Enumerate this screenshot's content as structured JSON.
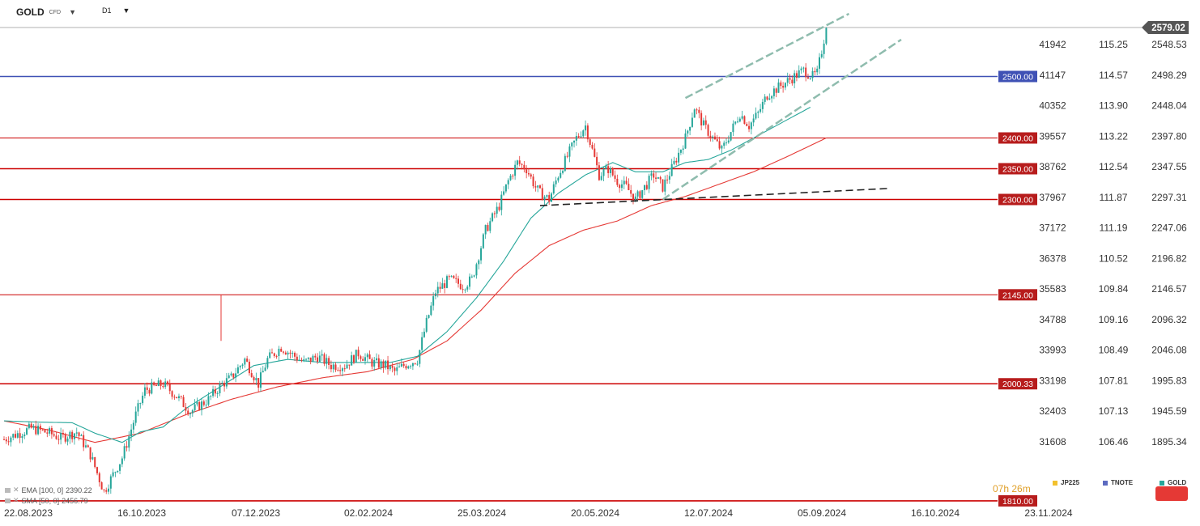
{
  "header": {
    "symbol": "GOLD",
    "symbol_suffix": "CFD",
    "timeframe": "D1"
  },
  "indicators": [
    {
      "name": "EMA [100, 0]",
      "value": "2390.22",
      "color": "#e53935"
    },
    {
      "name": "SMA [50, 0]",
      "value": "2456.79",
      "color": "#26a69a"
    }
  ],
  "countdown": "07h 26m",
  "legend": [
    {
      "name": "JP225",
      "color": "#f2c12e"
    },
    {
      "name": "TNOTE",
      "color": "#5c6bc0"
    },
    {
      "name": "GOLD",
      "color": "#26a69a"
    }
  ],
  "colors": {
    "up": "#26a69a",
    "down": "#e53935",
    "blue_level": "#3f51b5",
    "red_level": "#cc0000",
    "channel": "#8fbcae",
    "support": "#222222"
  },
  "chart_data": {
    "type": "candlestick",
    "title": "",
    "x_ticks": [
      "22.08.2023",
      "16.10.2023",
      "07.12.2023",
      "02.02.2024",
      "25.03.2024",
      "20.05.2024",
      "12.07.2024",
      "05.09.2024",
      "16.10.2024",
      "23.11.2024"
    ],
    "y_range": [
      1790,
      2605
    ],
    "axes": [
      {
        "series": "JP225",
        "ticks": [
          41942,
          41147,
          40352,
          39557,
          38762,
          37967,
          37172,
          36378,
          35583,
          34788,
          33993,
          33198,
          32403,
          31608
        ]
      },
      {
        "series": "TNOTE",
        "ticks": [
          "115.25",
          "114.57",
          "113.90",
          "113.22",
          "112.54",
          "111.87",
          "111.19",
          "110.52",
          "109.84",
          "109.16",
          "108.49",
          "107.81",
          "107.13",
          "106.46"
        ]
      },
      {
        "series": "GOLD",
        "ticks": [
          "2548.53",
          "2498.29",
          "2448.04",
          "2397.80",
          "2347.55",
          "2297.31",
          "2247.06",
          "2196.82",
          "2146.57",
          "2096.32",
          "2046.08",
          "1995.83",
          "1945.59",
          "1895.34"
        ]
      }
    ],
    "last_price": "2579.02",
    "horizontal_levels": [
      {
        "label": "2500.00",
        "value": 2500.0,
        "color": "blue"
      },
      {
        "label": "2400.00",
        "value": 2400.0,
        "color": "red"
      },
      {
        "label": "2350.00",
        "value": 2350.0,
        "color": "red"
      },
      {
        "label": "2300.00",
        "value": 2300.0,
        "color": "red"
      },
      {
        "label": "2145.00",
        "value": 2145.0,
        "color": "red"
      },
      {
        "label": "2000.33",
        "value": 2000.33,
        "color": "red"
      },
      {
        "label": "1810.00",
        "value": 1810.0,
        "color": "red"
      }
    ],
    "ohlc_waypoints": [
      [
        0,
        1910
      ],
      [
        12,
        1928
      ],
      [
        20,
        1920
      ],
      [
        25,
        1912
      ],
      [
        32,
        1922
      ],
      [
        38,
        1885
      ],
      [
        44,
        1825
      ],
      [
        52,
        1880
      ],
      [
        58,
        1950
      ],
      [
        62,
        1990
      ],
      [
        70,
        2000
      ],
      [
        76,
        1980
      ],
      [
        82,
        1955
      ],
      [
        90,
        1975
      ],
      [
        96,
        2000
      ],
      [
        100,
        2010
      ],
      [
        106,
        2040
      ],
      [
        112,
        2000
      ],
      [
        116,
        2040
      ],
      [
        122,
        2060
      ],
      [
        126,
        2050
      ],
      [
        132,
        2035
      ],
      [
        138,
        2045
      ],
      [
        144,
        2030
      ],
      [
        150,
        2030
      ],
      [
        156,
        2050
      ],
      [
        162,
        2035
      ],
      [
        168,
        2030
      ],
      [
        172,
        2020
      ],
      [
        176,
        2030
      ],
      [
        182,
        2040
      ],
      [
        186,
        2100
      ],
      [
        190,
        2150
      ],
      [
        196,
        2170
      ],
      [
        202,
        2160
      ],
      [
        206,
        2170
      ],
      [
        212,
        2250
      ],
      [
        218,
        2290
      ],
      [
        222,
        2330
      ],
      [
        226,
        2360
      ],
      [
        230,
        2350
      ],
      [
        234,
        2320
      ],
      [
        236,
        2310
      ],
      [
        240,
        2300
      ],
      [
        244,
        2340
      ],
      [
        248,
        2370
      ],
      [
        252,
        2400
      ],
      [
        256,
        2420
      ],
      [
        262,
        2340
      ],
      [
        266,
        2350
      ],
      [
        270,
        2330
      ],
      [
        274,
        2320
      ],
      [
        278,
        2300
      ],
      [
        282,
        2320
      ],
      [
        286,
        2340
      ],
      [
        290,
        2320
      ],
      [
        294,
        2350
      ],
      [
        300,
        2400
      ],
      [
        304,
        2450
      ],
      [
        308,
        2420
      ],
      [
        312,
        2400
      ],
      [
        316,
        2380
      ],
      [
        320,
        2410
      ],
      [
        324,
        2440
      ],
      [
        328,
        2420
      ],
      [
        332,
        2440
      ],
      [
        336,
        2470
      ],
      [
        340,
        2480
      ],
      [
        344,
        2490
      ],
      [
        348,
        2500
      ],
      [
        352,
        2510
      ],
      [
        356,
        2500
      ],
      [
        358,
        2505
      ],
      [
        362,
        2579
      ]
    ],
    "ema_100_waypoints": [
      [
        0,
        1940
      ],
      [
        20,
        1925
      ],
      [
        40,
        1905
      ],
      [
        60,
        1920
      ],
      [
        80,
        1950
      ],
      [
        100,
        1975
      ],
      [
        120,
        1995
      ],
      [
        140,
        2010
      ],
      [
        160,
        2020
      ],
      [
        180,
        2040
      ],
      [
        195,
        2070
      ],
      [
        210,
        2120
      ],
      [
        225,
        2180
      ],
      [
        240,
        2225
      ],
      [
        255,
        2250
      ],
      [
        270,
        2265
      ],
      [
        285,
        2290
      ],
      [
        300,
        2305
      ],
      [
        315,
        2325
      ],
      [
        330,
        2345
      ],
      [
        345,
        2370
      ],
      [
        362,
        2400
      ]
    ],
    "sma_50_waypoints": [
      [
        0,
        1940
      ],
      [
        15,
        1938
      ],
      [
        30,
        1937
      ],
      [
        40,
        1920
      ],
      [
        52,
        1905
      ],
      [
        60,
        1922
      ],
      [
        70,
        1930
      ],
      [
        80,
        1960
      ],
      [
        95,
        1995
      ],
      [
        110,
        2030
      ],
      [
        125,
        2040
      ],
      [
        140,
        2035
      ],
      [
        155,
        2035
      ],
      [
        170,
        2035
      ],
      [
        182,
        2045
      ],
      [
        195,
        2085
      ],
      [
        208,
        2140
      ],
      [
        220,
        2200
      ],
      [
        232,
        2270
      ],
      [
        244,
        2310
      ],
      [
        256,
        2340
      ],
      [
        268,
        2360
      ],
      [
        278,
        2345
      ],
      [
        290,
        2345
      ],
      [
        300,
        2360
      ],
      [
        310,
        2365
      ],
      [
        320,
        2380
      ],
      [
        330,
        2400
      ],
      [
        340,
        2420
      ],
      [
        355,
        2450
      ]
    ],
    "channel_lines": [
      {
        "from": [
          300,
          2465
        ],
        "to": [
          372,
          2602
        ]
      },
      {
        "from": [
          290,
          2300
        ],
        "to": [
          395,
          2560
        ]
      }
    ],
    "support_line": {
      "from": [
        236,
        2290
      ],
      "to": [
        390,
        2318
      ]
    }
  }
}
